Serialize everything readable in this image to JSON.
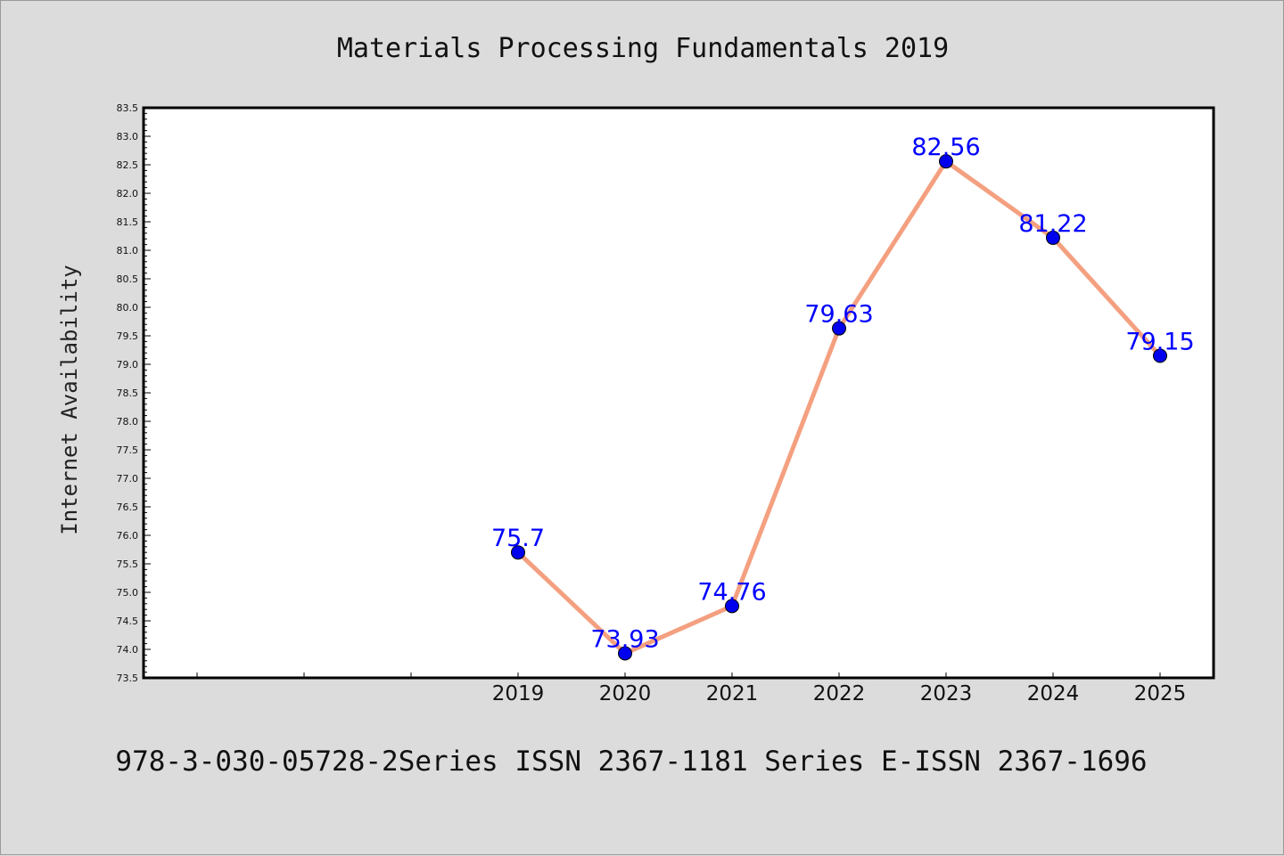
{
  "chart_data": {
    "type": "line",
    "title": "Materials Processing Fundamentals 2019",
    "ylabel": "Internet Availability",
    "xlabel": "",
    "footer": "978-3-030-05728-2Series ISSN 2367-1181 Series E-ISSN 2367-1696",
    "categories": [
      "2019",
      "2020",
      "2021",
      "2022",
      "2023",
      "2024",
      "2025"
    ],
    "series": [
      {
        "values": [
          75.7,
          73.93,
          74.76,
          79.63,
          82.56,
          81.22,
          79.15
        ]
      }
    ],
    "data_labels": [
      "75.7",
      "73.93",
      "74.76",
      "79.63",
      "82.56",
      "81.22",
      "79.15"
    ],
    "ylim": [
      73.5,
      83.5
    ],
    "y_ticks": [
      "73.5",
      "74.0",
      "74.5",
      "75.0",
      "75.5",
      "76.0",
      "76.5",
      "77.0",
      "77.5",
      "78.0",
      "78.5",
      "79.0",
      "79.5",
      "80.0",
      "80.5",
      "81.0",
      "81.5",
      "82.0",
      "82.5",
      "83.0",
      "83.5"
    ],
    "grid": false,
    "colors": {
      "line": "#f4a080",
      "marker": "#0000ee",
      "label": "#0000ff",
      "background": "#dcdcdc",
      "plot_background": "#ffffff"
    }
  }
}
